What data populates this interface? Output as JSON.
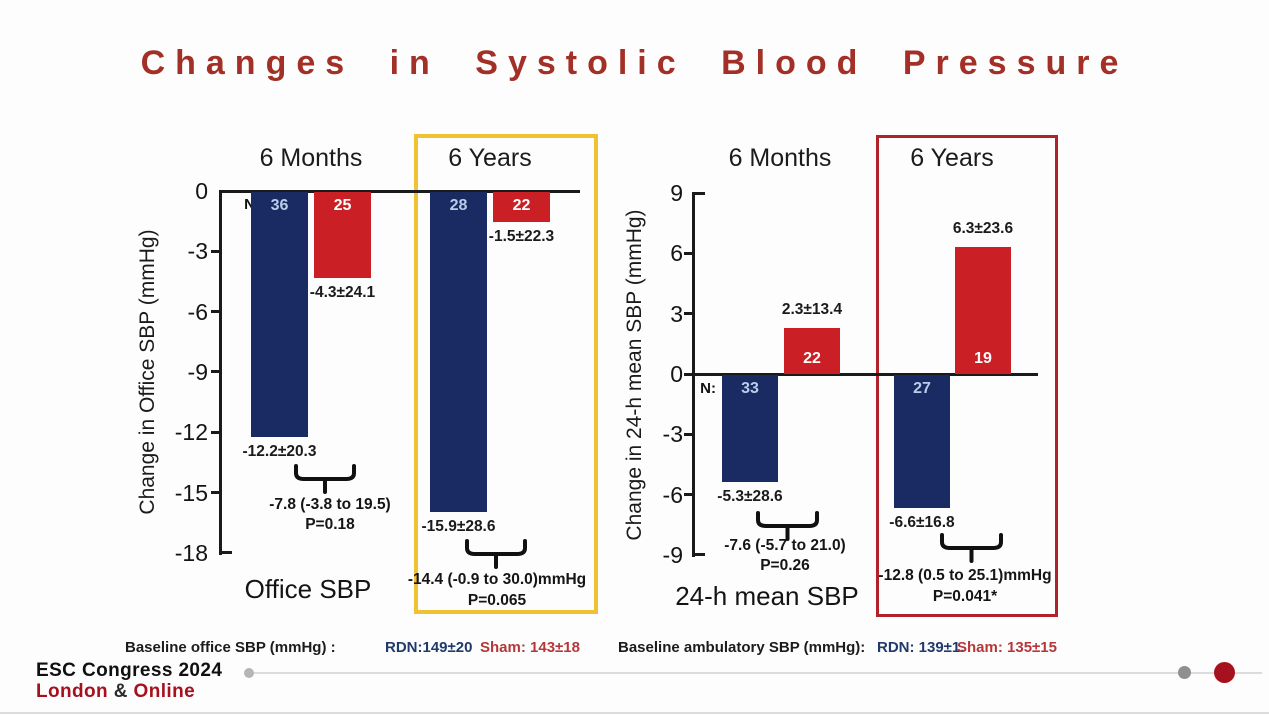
{
  "title": "Changes in Systolic Blood Pressure",
  "colors": {
    "rdn_bar": "#1a2a63",
    "sham_bar": "#cb1f26",
    "title_red": "#a23027",
    "highlight_office": "#efc233",
    "highlight_ambulatory": "#b1222a",
    "bar_number_on_blue": "#b9cde9",
    "bar_number_on_red": "#ffffff",
    "footer_red": "#a6111e",
    "baseline_rdn_text": "#1f3a6b",
    "baseline_sham_text": "#b5373a"
  },
  "chart_data": [
    {
      "type": "bar",
      "name": "office-sbp",
      "ylabel": "Change in Office SBP (mmHg)",
      "xlabel": "Office SBP",
      "n_prefix": "N:",
      "ylim": [
        -18,
        0
      ],
      "yticks": [
        0,
        -3,
        -6,
        -9,
        -12,
        -15,
        -18
      ],
      "grid": false,
      "groups": [
        {
          "label": "6 Months",
          "highlighted": false,
          "bars": [
            {
              "series": "RDN",
              "n": 36,
              "value": -12.2,
              "sd": 20.3,
              "value_label": "-12.2±20.3"
            },
            {
              "series": "Sham",
              "n": 25,
              "value": -4.3,
              "sd": 24.1,
              "value_label": "-4.3±24.1"
            }
          ],
          "difference": "-7.8 (-3.8 to 19.5)",
          "p_value": "P=0.18"
        },
        {
          "label": "6 Years",
          "highlighted": true,
          "bars": [
            {
              "series": "RDN",
              "n": 28,
              "value": -15.9,
              "sd": 28.6,
              "value_label": "-15.9±28.6"
            },
            {
              "series": "Sham",
              "n": 22,
              "value": -1.5,
              "sd": 22.3,
              "value_label": "-1.5±22.3"
            }
          ],
          "difference": "-14.4 (-0.9 to 30.0)mmHg",
          "p_value": "P=0.065"
        }
      ]
    },
    {
      "type": "bar",
      "name": "24h-mean-sbp",
      "ylabel": "Change in 24-h mean SBP (mmHg)",
      "xlabel": "24-h mean SBP",
      "n_prefix": "N:",
      "ylim": [
        -9,
        9
      ],
      "yticks": [
        9,
        6,
        3,
        0,
        -3,
        -6,
        -9
      ],
      "grid": false,
      "groups": [
        {
          "label": "6 Months",
          "highlighted": false,
          "bars": [
            {
              "series": "RDN",
              "n": 33,
              "value": -5.3,
              "sd": 28.6,
              "value_label": "-5.3±28.6"
            },
            {
              "series": "Sham",
              "n": 22,
              "value": 2.3,
              "sd": 13.4,
              "value_label": "2.3±13.4"
            }
          ],
          "difference": "-7.6 (-5.7 to 21.0)",
          "p_value": "P=0.26"
        },
        {
          "label": "6 Years",
          "highlighted": true,
          "bars": [
            {
              "series": "RDN",
              "n": 27,
              "value": -6.6,
              "sd": 16.8,
              "value_label": "-6.6±16.8"
            },
            {
              "series": "Sham",
              "n": 19,
              "value": 6.3,
              "sd": 23.6,
              "value_label": "6.3±23.6"
            }
          ],
          "difference": "-12.8 (0.5 to 25.1)mmHg",
          "p_value": "P=0.041*"
        }
      ]
    }
  ],
  "baseline": {
    "office_label": "Baseline office SBP (mmHg) :",
    "office_rdn": "RDN:149±20",
    "office_sham": "Sham: 143±18",
    "ambulatory_label": "Baseline ambulatory SBP (mmHg):",
    "ambulatory_rdn": "RDN: 139±1.",
    "ambulatory_sham": "Sham: 135±15"
  },
  "footer": {
    "line1": "ESC Congress 2024",
    "line2_city": "London",
    "line2_amp": "&",
    "line2_mode": "Online"
  }
}
